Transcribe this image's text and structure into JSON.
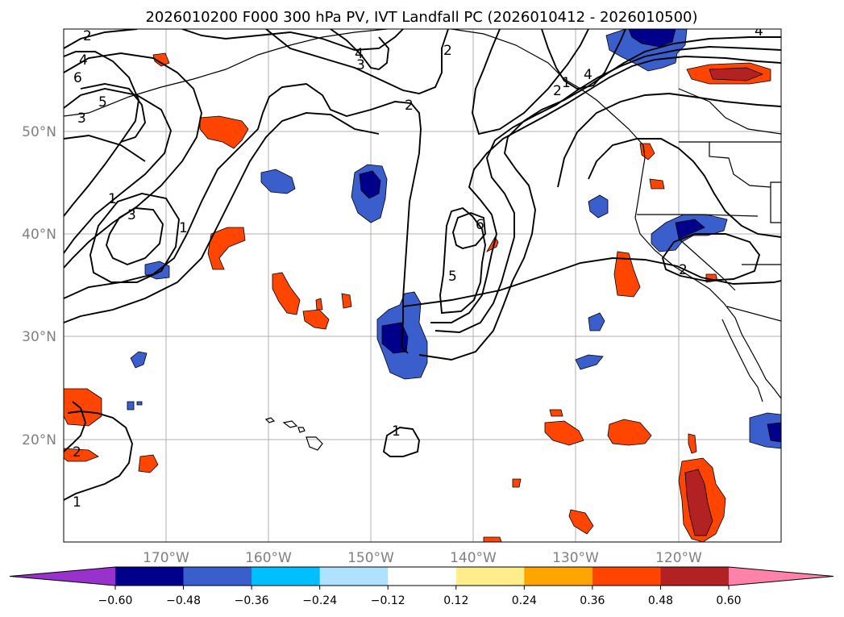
{
  "title": "2026010200 F000 300 hPa PV, IVT Landfall PC (2026010412 - 2026010500)",
  "map": {
    "lat_labels": [
      "50°N",
      "40°N",
      "30°N",
      "20°N"
    ],
    "lon_labels": [
      "170°W",
      "160°W",
      "150°W",
      "140°W",
      "130°W",
      "120°W"
    ],
    "contour_labels": [
      "2",
      "4",
      "6",
      "5",
      "3",
      "4",
      "3",
      "2",
      "4",
      "2",
      "2",
      "1",
      "3",
      "1",
      "6",
      "5",
      "2",
      "1",
      "1",
      "1",
      "2",
      "4"
    ]
  },
  "colorbar": {
    "ticks": [
      "−0.60",
      "−0.48",
      "−0.36",
      "−0.24",
      "−0.12",
      "0.12",
      "0.24",
      "0.36",
      "0.48",
      "0.60"
    ],
    "colors": [
      "#9932CC",
      "#00008B",
      "#3A5FCD",
      "#00BFFF",
      "#B0E2FF",
      "#FFFFFF",
      "#FFEC8B",
      "#FFA500",
      "#FF4500",
      "#B22222",
      "#FF82AB"
    ]
  }
}
